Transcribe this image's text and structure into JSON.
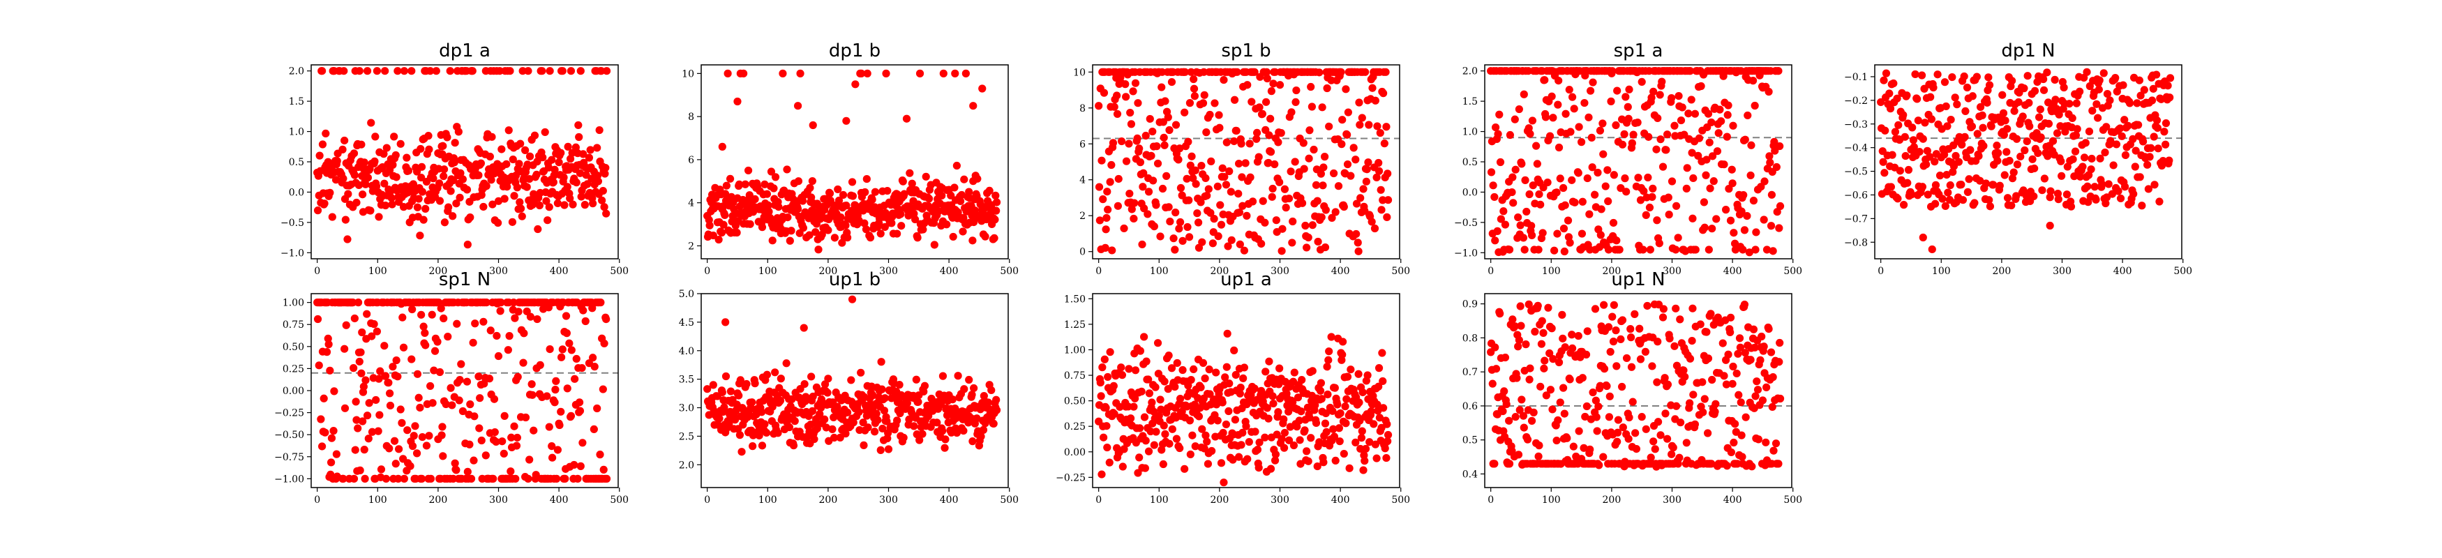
{
  "colors": {
    "points": "#ff0000",
    "reference_line": "#808080"
  },
  "chart_data": [
    {
      "type": "scatter",
      "title": "dp1 a",
      "xlim": [
        -10,
        498
      ],
      "ylim": [
        -1.1,
        2.1
      ],
      "xticks": [
        0,
        100,
        200,
        300,
        400,
        500
      ],
      "yticks": [
        -1.0,
        -0.5,
        0.0,
        0.5,
        1.0,
        1.5,
        2.0
      ],
      "ytick_labels": [
        "−1.0",
        "−0.5",
        "0.0",
        "0.5",
        "1.0",
        "1.5",
        "2.0"
      ],
      "reference_line": null,
      "points_count": 480,
      "seed": 11,
      "distribution": {
        "kind": "band",
        "center": 0.25,
        "spread": 0.5,
        "min": -1.0,
        "max": 2.0,
        "cap": 2.0,
        "cap_ratio": 0.1
      }
    },
    {
      "type": "scatter",
      "title": "dp1 b",
      "xlim": [
        -10,
        498
      ],
      "ylim": [
        1.4,
        10.4
      ],
      "xticks": [
        0,
        100,
        200,
        300,
        400,
        500
      ],
      "yticks": [
        2,
        4,
        6,
        8,
        10
      ],
      "ytick_labels": [
        "2",
        "4",
        "6",
        "8",
        "10"
      ],
      "reference_line": null,
      "points_count": 480,
      "seed": 12,
      "distribution": {
        "kind": "band",
        "center": 3.7,
        "spread": 0.9,
        "min": 1.8,
        "max": 10,
        "cap": 10,
        "cap_ratio": 0.02,
        "outliers": [
          [
            60,
            10
          ],
          [
            125,
            10
          ],
          [
            150,
            8.5
          ],
          [
            175,
            7.6
          ],
          [
            230,
            7.8
          ],
          [
            245,
            9.5
          ],
          [
            255,
            10
          ],
          [
            265,
            10
          ],
          [
            330,
            7.9
          ],
          [
            410,
            10
          ],
          [
            440,
            8.5
          ],
          [
            455,
            9.3
          ],
          [
            50,
            8.7
          ],
          [
            25,
            6.6
          ]
        ]
      }
    },
    {
      "type": "scatter",
      "title": "sp1 b",
      "xlim": [
        -10,
        498
      ],
      "ylim": [
        -0.4,
        10.4
      ],
      "xticks": [
        0,
        100,
        200,
        300,
        400,
        500
      ],
      "yticks": [
        0,
        2,
        4,
        6,
        8,
        10
      ],
      "ytick_labels": [
        "0",
        "2",
        "4",
        "6",
        "8",
        "10"
      ],
      "reference_line": 6.3,
      "points_count": 480,
      "seed": 13,
      "distribution": {
        "kind": "uniform",
        "min": 0,
        "max": 10,
        "cap": 10,
        "cap_ratio": 0.25
      }
    },
    {
      "type": "scatter",
      "title": "sp1 a",
      "xlim": [
        -10,
        498
      ],
      "ylim": [
        -1.1,
        2.1
      ],
      "xticks": [
        0,
        100,
        200,
        300,
        400,
        500
      ],
      "yticks": [
        -1.0,
        -0.5,
        0.0,
        0.5,
        1.0,
        1.5,
        2.0
      ],
      "ytick_labels": [
        "−1.0",
        "−0.5",
        "0.0",
        "0.5",
        "1.0",
        "1.5",
        "2.0"
      ],
      "reference_line": 0.9,
      "points_count": 480,
      "seed": 14,
      "distribution": {
        "kind": "uniform",
        "min": -1,
        "max": 2,
        "cap": 2,
        "cap_ratio": 0.3,
        "floor": -0.95,
        "floor_ratio": 0.06
      }
    },
    {
      "type": "scatter",
      "title": "dp1 N",
      "xlim": [
        -10,
        498
      ],
      "ylim": [
        -0.87,
        -0.05
      ],
      "xticks": [
        0,
        100,
        200,
        300,
        400,
        500
      ],
      "yticks": [
        -0.8,
        -0.7,
        -0.6,
        -0.5,
        -0.4,
        -0.3,
        -0.2,
        -0.1
      ],
      "ytick_labels": [
        "−0.8",
        "−0.7",
        "−0.6",
        "−0.5",
        "−0.4",
        "−0.3",
        "−0.2",
        "−0.1"
      ],
      "reference_line": -0.36,
      "points_count": 480,
      "seed": 15,
      "distribution": {
        "kind": "uniform",
        "min": -0.65,
        "max": -0.08,
        "outliers": [
          [
            70,
            -0.78
          ],
          [
            85,
            -0.83
          ],
          [
            280,
            -0.73
          ]
        ]
      }
    },
    {
      "type": "scatter",
      "title": "sp1 N",
      "xlim": [
        -10,
        498
      ],
      "ylim": [
        -1.1,
        1.1
      ],
      "xticks": [
        0,
        100,
        200,
        300,
        400,
        500
      ],
      "yticks": [
        -1.0,
        -0.75,
        -0.5,
        -0.25,
        0.0,
        0.25,
        0.5,
        0.75,
        1.0
      ],
      "ytick_labels": [
        "−1.00",
        "−0.75",
        "−0.50",
        "−0.25",
        "0.00",
        "0.25",
        "0.50",
        "0.75",
        "1.00"
      ],
      "reference_line": 0.2,
      "points_count": 480,
      "seed": 16,
      "distribution": {
        "kind": "uniform",
        "min": -1,
        "max": 1,
        "cap": 1,
        "cap_ratio": 0.3,
        "floor": -1,
        "floor_ratio": 0.18
      }
    },
    {
      "type": "scatter",
      "title": "up1 b",
      "xlim": [
        -10,
        498
      ],
      "ylim": [
        1.6,
        5.0
      ],
      "xticks": [
        0,
        100,
        200,
        300,
        400,
        500
      ],
      "yticks": [
        2.0,
        2.5,
        3.0,
        3.5,
        4.0,
        4.5,
        5.0
      ],
      "ytick_labels": [
        "2.0",
        "2.5",
        "3.0",
        "3.5",
        "4.0",
        "4.5",
        "5.0"
      ],
      "reference_line": null,
      "points_count": 480,
      "seed": 17,
      "distribution": {
        "kind": "band",
        "center": 2.95,
        "spread": 0.4,
        "min": 1.8,
        "max": 4.9,
        "outliers": [
          [
            240,
            4.9
          ],
          [
            30,
            4.5
          ],
          [
            160,
            4.4
          ]
        ]
      }
    },
    {
      "type": "scatter",
      "title": "up1 a",
      "xlim": [
        -10,
        498
      ],
      "ylim": [
        -0.35,
        1.55
      ],
      "xticks": [
        0,
        100,
        200,
        300,
        400,
        500
      ],
      "yticks": [
        -0.25,
        0.0,
        0.25,
        0.5,
        0.75,
        1.0,
        1.25,
        1.5
      ],
      "ytick_labels": [
        "−0.25",
        "0.00",
        "0.25",
        "0.50",
        "0.75",
        "1.00",
        "1.25",
        "1.50"
      ],
      "reference_line": null,
      "points_count": 480,
      "seed": 18,
      "distribution": {
        "kind": "band",
        "center": 0.4,
        "spread": 0.35,
        "min": -0.3,
        "max": 1.5
      }
    },
    {
      "type": "scatter",
      "title": "up1 N",
      "xlim": [
        -10,
        498
      ],
      "ylim": [
        0.36,
        0.93
      ],
      "xticks": [
        0,
        100,
        200,
        300,
        400,
        500
      ],
      "yticks": [
        0.4,
        0.5,
        0.6,
        0.7,
        0.8,
        0.9
      ],
      "ytick_labels": [
        "0.4",
        "0.5",
        "0.6",
        "0.7",
        "0.8",
        "0.9"
      ],
      "reference_line": 0.6,
      "points_count": 480,
      "seed": 19,
      "distribution": {
        "kind": "uniform",
        "min": 0.42,
        "max": 0.9,
        "floor": 0.43,
        "floor_ratio": 0.25
      }
    }
  ]
}
